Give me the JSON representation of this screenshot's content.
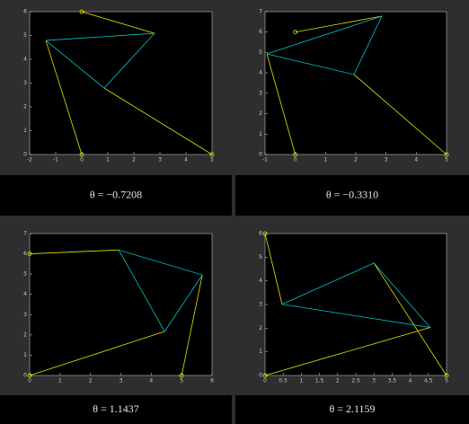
{
  "chart_data": [
    {
      "type": "line",
      "caption": "θ = −0.7208",
      "xlim": [
        -2,
        5
      ],
      "xticks": [
        -2,
        -1,
        0,
        1,
        2,
        3,
        4,
        5
      ],
      "ylim": [
        0,
        6
      ],
      "yticks": [
        0,
        1,
        2,
        3,
        4,
        5,
        6
      ],
      "series": [
        {
          "color": "#e6e600",
          "x": [
            0,
            -1.38,
            null,
            0.86,
            5,
            null,
            2.79,
            0
          ],
          "values": [
            0,
            4.79,
            null,
            2.79,
            0,
            null,
            5.09,
            6
          ]
        },
        {
          "color": "#00c8c8",
          "x": [
            -1.38,
            2.79,
            0.86,
            -1.38
          ],
          "values": [
            4.79,
            5.09,
            2.79,
            4.79
          ]
        }
      ],
      "markers": {
        "color": "#e6e600",
        "x": [
          0,
          5,
          0
        ],
        "values": [
          0,
          0,
          6
        ]
      }
    },
    {
      "type": "line",
      "caption": "θ = −0.3310",
      "xlim": [
        -1,
        5
      ],
      "xticks": [
        -1,
        0,
        1,
        2,
        3,
        4,
        5
      ],
      "ylim": [
        0,
        7
      ],
      "yticks": [
        0,
        1,
        2,
        3,
        4,
        5,
        6,
        7
      ],
      "series": [
        {
          "color": "#e6e600",
          "x": [
            0,
            -0.94,
            null,
            1.94,
            5,
            null,
            2.86,
            0
          ],
          "values": [
            0,
            4.93,
            null,
            3.92,
            0,
            null,
            6.78,
            6
          ]
        },
        {
          "color": "#00c8c8",
          "x": [
            -0.94,
            2.86,
            1.94,
            -0.94
          ],
          "values": [
            4.93,
            6.78,
            3.92,
            4.93
          ]
        }
      ],
      "markers": {
        "color": "#e6e600",
        "x": [
          0,
          5,
          0
        ],
        "values": [
          0,
          0,
          6
        ]
      }
    },
    {
      "type": "line",
      "caption": "θ = 1.1437",
      "xlim": [
        0,
        6
      ],
      "xticks": [
        0,
        1,
        2,
        3,
        4,
        5,
        6
      ],
      "ylim": [
        0,
        7
      ],
      "yticks": [
        0,
        1,
        2,
        3,
        4,
        5,
        6,
        7
      ],
      "series": [
        {
          "color": "#e6e600",
          "x": [
            0,
            4.44,
            null,
            5.68,
            5,
            null,
            2.93,
            0
          ],
          "values": [
            0,
            2.17,
            null,
            4.96,
            0,
            null,
            6.19,
            6
          ]
        },
        {
          "color": "#00c8c8",
          "x": [
            4.44,
            2.93,
            5.68,
            4.44
          ],
          "values": [
            2.17,
            6.19,
            4.96,
            2.17
          ]
        }
      ],
      "markers": {
        "color": "#e6e600",
        "x": [
          0,
          5,
          0
        ],
        "values": [
          0,
          0,
          6
        ]
      }
    },
    {
      "type": "line",
      "caption": "θ = 2.1159",
      "xlim": [
        0,
        5
      ],
      "xticks": [
        0,
        0.5,
        1,
        1.5,
        2,
        2.5,
        3,
        3.5,
        4,
        4.5,
        5
      ],
      "ylim": [
        0,
        6
      ],
      "yticks": [
        0,
        1,
        2,
        3,
        4,
        5,
        6
      ],
      "series": [
        {
          "color": "#e6e600",
          "x": [
            0,
            4.55,
            null,
            3.0,
            5,
            null,
            0.47,
            0
          ],
          "values": [
            0,
            2.03,
            null,
            4.75,
            0,
            null,
            3.01,
            6
          ]
        },
        {
          "color": "#00c8c8",
          "x": [
            0.47,
            3.0,
            4.55,
            0.47
          ],
          "values": [
            3.01,
            4.75,
            2.03,
            3.01
          ]
        }
      ],
      "markers": {
        "color": "#e6e600",
        "x": [
          0,
          5,
          0
        ],
        "values": [
          0,
          0,
          6
        ]
      }
    }
  ]
}
